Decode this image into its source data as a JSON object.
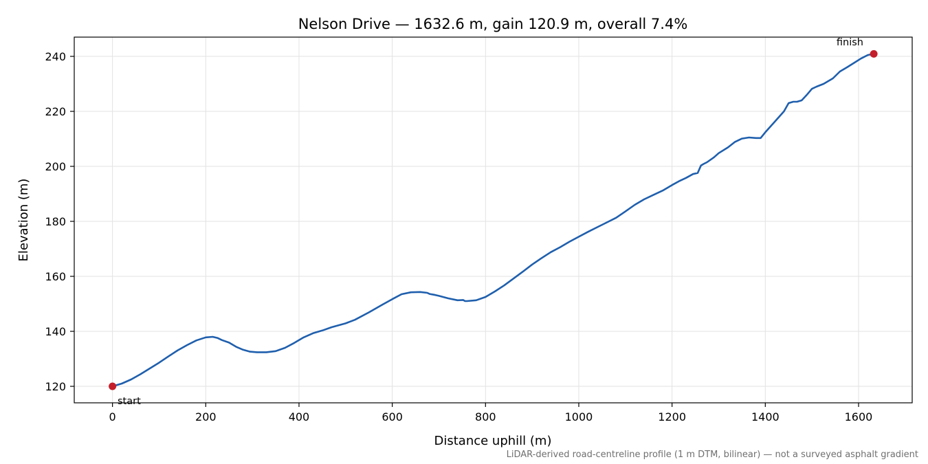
{
  "chart_data": {
    "type": "line",
    "title": "Nelson Drive — 1632.6 m, gain 120.9 m, overall 7.4%",
    "xlabel": "Distance uphill (m)",
    "ylabel": "Elevation (m)",
    "xlim": [
      -82,
      1715
    ],
    "ylim": [
      114,
      247
    ],
    "xticks": [
      0,
      200,
      400,
      600,
      800,
      1000,
      1200,
      1400,
      1600
    ],
    "yticks": [
      120,
      140,
      160,
      180,
      200,
      220,
      240
    ],
    "grid": true,
    "footnote": "LiDAR-derived road-centreline profile (1 m DTM, bilinear) — not a surveyed asphalt gradient",
    "colors": {
      "line": "#1f5fad",
      "markers": "#c41e2a",
      "grid": "#e2e2e2",
      "footnote": "#6f6f6f"
    },
    "series": [
      {
        "x": [
          0,
          20,
          40,
          60,
          80,
          100,
          120,
          140,
          160,
          180,
          200,
          215,
          225,
          235,
          250,
          265,
          280,
          295,
          310,
          330,
          350,
          370,
          390,
          410,
          430,
          450,
          470,
          500,
          520,
          550,
          580,
          600,
          620,
          640,
          660,
          675,
          680,
          690,
          700,
          720,
          740,
          752,
          756,
          760,
          780,
          800,
          820,
          840,
          860,
          880,
          900,
          920,
          940,
          960,
          980,
          1000,
          1020,
          1040,
          1060,
          1080,
          1100,
          1120,
          1140,
          1160,
          1180,
          1200,
          1215,
          1230,
          1245,
          1255,
          1262,
          1268,
          1275,
          1290,
          1300,
          1320,
          1335,
          1350,
          1365,
          1380,
          1390,
          1400,
          1420,
          1440,
          1450,
          1460,
          1468,
          1478,
          1490,
          1500,
          1510,
          1525,
          1545,
          1560,
          1575,
          1590,
          1605,
          1620,
          1632.6
        ],
        "y": [
          120.0,
          121.0,
          122.5,
          124.4,
          126.5,
          128.6,
          130.9,
          133.1,
          135.0,
          136.7,
          137.8,
          138.0,
          137.6,
          136.8,
          135.9,
          134.4,
          133.3,
          132.6,
          132.4,
          132.4,
          132.8,
          134.0,
          135.8,
          137.8,
          139.3,
          140.3,
          141.5,
          142.9,
          144.2,
          146.9,
          149.8,
          151.7,
          153.5,
          154.2,
          154.3,
          154.0,
          153.6,
          153.3,
          152.9,
          152.0,
          151.3,
          151.4,
          151.0,
          151.0,
          151.3,
          152.5,
          154.5,
          156.7,
          159.2,
          161.7,
          164.3,
          166.6,
          168.8,
          170.6,
          172.6,
          174.4,
          176.2,
          177.9,
          179.6,
          181.3,
          183.6,
          186.0,
          188.0,
          189.6,
          191.2,
          193.2,
          194.6,
          195.8,
          197.2,
          197.6,
          200.3,
          200.9,
          201.5,
          203.3,
          204.8,
          206.9,
          208.9,
          210.1,
          210.5,
          210.3,
          210.3,
          212.4,
          216.2,
          220.0,
          223.0,
          223.5,
          223.5,
          224.0,
          226.2,
          228.2,
          229.0,
          230.0,
          232.0,
          234.5,
          236.0,
          237.6,
          239.2,
          240.5,
          240.9
        ]
      }
    ],
    "annotations": {
      "start": {
        "label": "start",
        "x": 0,
        "y": 120.0
      },
      "finish": {
        "label": "finish",
        "x": 1632.6,
        "y": 240.9
      }
    }
  }
}
